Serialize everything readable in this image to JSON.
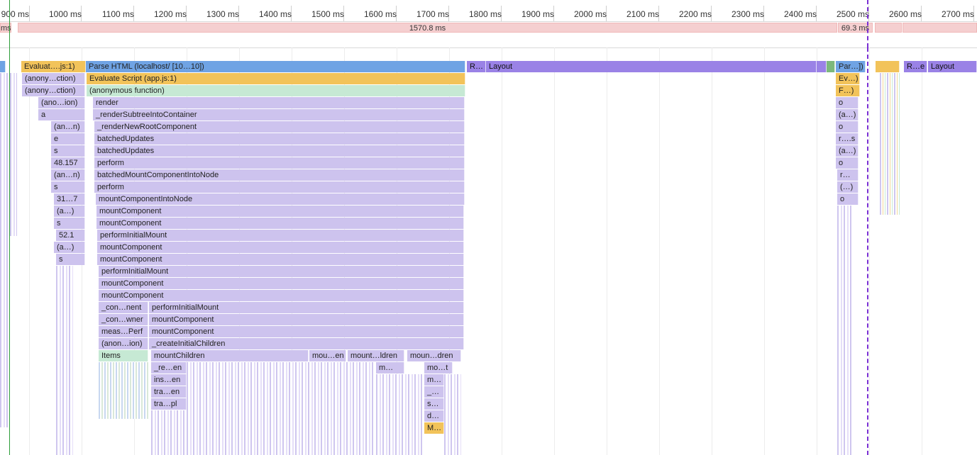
{
  "ruler": {
    "ticks": [
      "900 ms",
      "1000 ms",
      "1100 ms",
      "1200 ms",
      "1300 ms",
      "1400 ms",
      "1500 ms",
      "1600 ms",
      "1700 ms",
      "1800 ms",
      "1900 ms",
      "2000 ms",
      "2100 ms",
      "2200 ms",
      "2300 ms",
      "2400 ms",
      "2500 ms",
      "2600 ms",
      "2700 ms"
    ]
  },
  "frames": {
    "left_stub": "ms",
    "main_frame": "1570.8 ms",
    "second_frame": "69.3 ms"
  },
  "flame": {
    "row0": {
      "evaluate": "Evaluat….js:1)",
      "parse_html": "Parse HTML (localhost/ [10…10])",
      "recalc": "R…",
      "layout": "Layout",
      "parse_right": "Par…])",
      "recalc_right": "R…e",
      "layout_right": "Layout"
    },
    "left_col": [
      "(anony…ction)",
      "(anony…ction)",
      "(ano…ion)",
      "a",
      "(an…n)",
      "e",
      "s",
      "48.157",
      "(an…n)",
      "s",
      "31…7",
      "(a…)",
      "s",
      "52.1",
      "(a…)",
      "s"
    ],
    "main_col": [
      "Evaluate Script (app.js:1)",
      "(anonymous function)",
      "render",
      "_renderSubtreeIntoContainer",
      "_renderNewRootComponent",
      "batchedUpdates",
      "batchedUpdates",
      "perform",
      "batchedMountComponentIntoNode",
      "perform",
      "mountComponentIntoNode",
      "mountComponent",
      "mountComponent",
      "performInitialMount",
      "mountComponent",
      "mountComponent",
      "performInitialMount",
      "mountComponent",
      "mountComponent",
      "performInitialMount",
      "mountComponent",
      "mountComponent",
      "_createInitialChildren",
      "mountChildren"
    ],
    "sub_left": [
      "_con…nent",
      "_con…wner",
      "meas…Perf",
      "(anon…ion)",
      "Items"
    ],
    "deep": [
      "_re…en",
      "ins…en",
      "tra…en",
      "tra…pl"
    ],
    "mount_extra": [
      "mou…en",
      "mount…ldren",
      "moun…dren"
    ],
    "m_small": "m…",
    "right_col": [
      "mo…t",
      "m…",
      "_…",
      "s…",
      "d…",
      "M…"
    ],
    "far_right": [
      "Ev…)",
      "F…)",
      "o",
      "(a…)",
      "o",
      "r….s",
      "(a…)",
      "o",
      "r…",
      "(…)",
      "o"
    ]
  },
  "colors": {
    "parse_html": "#6fa3e4",
    "script": "#f2c35a",
    "js_frame": "#cdc3ee",
    "anon": "#c6e9d4",
    "layout": "#9a82e6",
    "frame_bar": "#f5cfd0"
  }
}
